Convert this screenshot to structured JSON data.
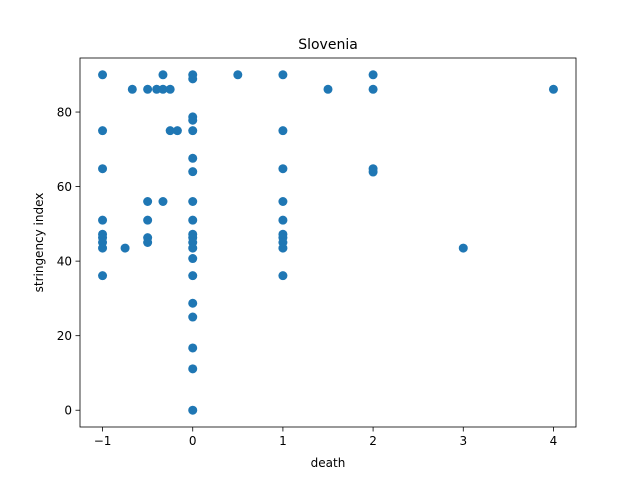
{
  "chart_data": {
    "type": "scatter",
    "title": "Slovenia",
    "xlabel": "death",
    "ylabel": "stringency index",
    "xlim": [
      -1.25,
      4.25
    ],
    "ylim": [
      -4.5,
      94.5
    ],
    "xticks": [
      {
        "value": -1,
        "label": "−1"
      },
      {
        "value": 0,
        "label": "0"
      },
      {
        "value": 1,
        "label": "1"
      },
      {
        "value": 2,
        "label": "2"
      },
      {
        "value": 3,
        "label": "3"
      },
      {
        "value": 4,
        "label": "4"
      }
    ],
    "yticks": [
      {
        "value": 0,
        "label": "0"
      },
      {
        "value": 20,
        "label": "20"
      },
      {
        "value": 40,
        "label": "40"
      },
      {
        "value": 60,
        "label": "60"
      },
      {
        "value": 80,
        "label": "80"
      }
    ],
    "grid": false,
    "marker_color": "#1f77b4",
    "points": [
      {
        "x": -1,
        "y": 90
      },
      {
        "x": -1,
        "y": 75
      },
      {
        "x": -1,
        "y": 64.8
      },
      {
        "x": -1,
        "y": 51
      },
      {
        "x": -1,
        "y": 47.2
      },
      {
        "x": -1,
        "y": 46.3
      },
      {
        "x": -1,
        "y": 45
      },
      {
        "x": -1,
        "y": 43.5
      },
      {
        "x": -1,
        "y": 36.1
      },
      {
        "x": -0.75,
        "y": 43.5
      },
      {
        "x": -0.67,
        "y": 86.1
      },
      {
        "x": -0.5,
        "y": 86.1
      },
      {
        "x": -0.5,
        "y": 56
      },
      {
        "x": -0.5,
        "y": 51
      },
      {
        "x": -0.5,
        "y": 46.3
      },
      {
        "x": -0.5,
        "y": 45
      },
      {
        "x": -0.4,
        "y": 86.1
      },
      {
        "x": -0.33,
        "y": 90
      },
      {
        "x": -0.33,
        "y": 86.1
      },
      {
        "x": -0.33,
        "y": 56
      },
      {
        "x": -0.25,
        "y": 86.1
      },
      {
        "x": -0.25,
        "y": 75
      },
      {
        "x": -0.17,
        "y": 75
      },
      {
        "x": 0,
        "y": 90
      },
      {
        "x": 0,
        "y": 88.9
      },
      {
        "x": 0,
        "y": 78.7
      },
      {
        "x": 0,
        "y": 77.8
      },
      {
        "x": 0,
        "y": 75
      },
      {
        "x": 0,
        "y": 67.6
      },
      {
        "x": 0,
        "y": 64
      },
      {
        "x": 0,
        "y": 56
      },
      {
        "x": 0,
        "y": 51
      },
      {
        "x": 0,
        "y": 47.2
      },
      {
        "x": 0,
        "y": 46.3
      },
      {
        "x": 0,
        "y": 45
      },
      {
        "x": 0,
        "y": 43.5
      },
      {
        "x": 0,
        "y": 40.7
      },
      {
        "x": 0,
        "y": 36.1
      },
      {
        "x": 0,
        "y": 28.7
      },
      {
        "x": 0,
        "y": 25
      },
      {
        "x": 0,
        "y": 16.7
      },
      {
        "x": 0,
        "y": 11.1
      },
      {
        "x": 0,
        "y": 0
      },
      {
        "x": 0.5,
        "y": 90
      },
      {
        "x": 1,
        "y": 90
      },
      {
        "x": 1,
        "y": 75
      },
      {
        "x": 1,
        "y": 64.8
      },
      {
        "x": 1,
        "y": 56
      },
      {
        "x": 1,
        "y": 51
      },
      {
        "x": 1,
        "y": 47.2
      },
      {
        "x": 1,
        "y": 46.3
      },
      {
        "x": 1,
        "y": 45
      },
      {
        "x": 1,
        "y": 43.5
      },
      {
        "x": 1,
        "y": 36.1
      },
      {
        "x": 1.5,
        "y": 86.1
      },
      {
        "x": 2,
        "y": 90
      },
      {
        "x": 2,
        "y": 86.1
      },
      {
        "x": 2,
        "y": 64.8
      },
      {
        "x": 2,
        "y": 63.9
      },
      {
        "x": 3,
        "y": 43.5
      },
      {
        "x": 4,
        "y": 86.1
      }
    ]
  }
}
